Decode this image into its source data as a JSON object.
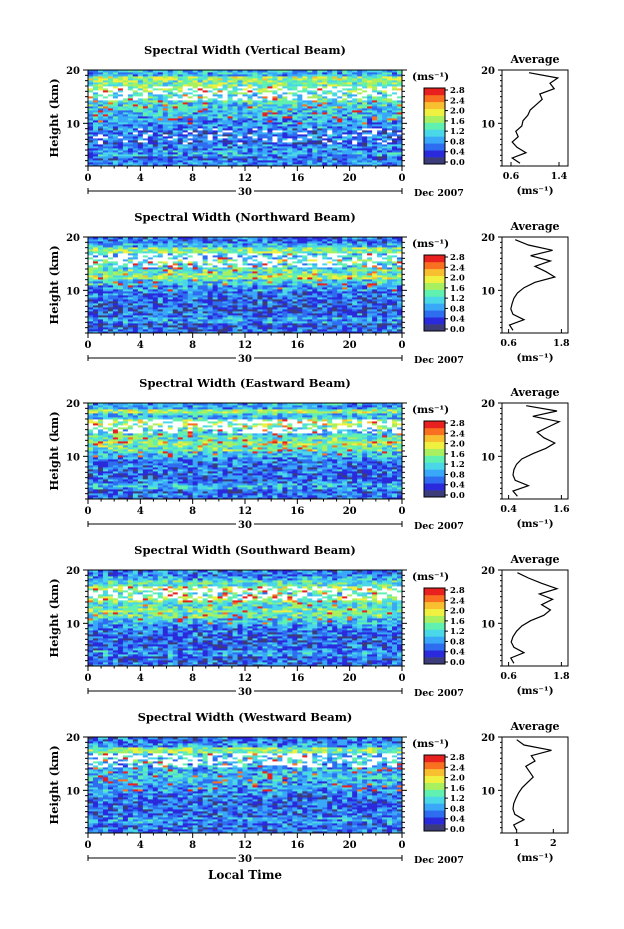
{
  "x_axis_title": "Local Time",
  "date_label": "Dec 2007",
  "day_label": "30",
  "colorbar_unit": "(ms⁻¹)",
  "y_axis_label": "Height (km)",
  "avg_title": "Average",
  "avg_unit": "(ms⁻¹)",
  "colorbar_ticks": [
    "0.0",
    "0.4",
    "0.8",
    "1.2",
    "1.6",
    "2.0",
    "2.4",
    "2.8"
  ],
  "colorbar_colors": [
    "#3c3c7a",
    "#2a2adc",
    "#2e6cf0",
    "#3aa8f8",
    "#4ad8e8",
    "#60f0b0",
    "#a8f060",
    "#f0f040",
    "#f8c030",
    "#f87020",
    "#e82020"
  ],
  "chart_data": [
    {
      "type": "heatmap",
      "title": "Spectral Width (Vertical Beam)",
      "xlabel": "Local Time",
      "ylabel": "Height (km)",
      "x_ticks": [
        "0",
        "4",
        "8",
        "12",
        "16",
        "20",
        "0"
      ],
      "y_ticks": [
        "10",
        "20"
      ],
      "xlim": [
        0,
        24
      ],
      "ylim": [
        2,
        20
      ],
      "profile": {
        "title": "Average",
        "xlabel": "(ms⁻¹)",
        "x_ticks": [
          "0.6",
          "1.4"
        ],
        "xlim": [
          0.45,
          1.55
        ],
        "heights": [
          2.5,
          3.5,
          4.5,
          5.5,
          6.5,
          7.5,
          8.5,
          9.5,
          10.5,
          11.5,
          12.5,
          13.5,
          14.5,
          15.5,
          16.5,
          17.5,
          18.5,
          19.5
        ],
        "values": [
          0.75,
          0.62,
          0.85,
          0.7,
          0.62,
          0.72,
          0.68,
          0.78,
          0.8,
          0.88,
          0.92,
          1.02,
          1.12,
          1.08,
          1.32,
          1.25,
          1.38,
          0.9
        ]
      }
    },
    {
      "type": "heatmap",
      "title": "Spectral Width (Northward Beam)",
      "xlabel": "Local Time",
      "ylabel": "Height (km)",
      "x_ticks": [
        "0",
        "4",
        "8",
        "12",
        "16",
        "20",
        "0"
      ],
      "y_ticks": [
        "10",
        "20"
      ],
      "xlim": [
        0,
        24
      ],
      "ylim": [
        2,
        20
      ],
      "profile": {
        "title": "Average",
        "xlabel": "(ms⁻¹)",
        "x_ticks": [
          "0.6",
          "1.8"
        ],
        "xlim": [
          0.45,
          1.95
        ],
        "heights": [
          2.5,
          3.5,
          4.5,
          5.5,
          6.5,
          7.5,
          8.5,
          9.5,
          10.5,
          11.5,
          12.5,
          13.5,
          14.5,
          15.5,
          16.5,
          17.5,
          18.5,
          19.5
        ],
        "values": [
          0.7,
          0.62,
          0.95,
          0.7,
          0.65,
          0.68,
          0.72,
          0.8,
          0.95,
          1.2,
          1.65,
          1.45,
          1.2,
          1.55,
          1.1,
          1.6,
          1.05,
          0.75
        ]
      }
    },
    {
      "type": "heatmap",
      "title": "Spectral Width (Eastward Beam)",
      "xlabel": "Local Time",
      "ylabel": "Height (km)",
      "x_ticks": [
        "0",
        "4",
        "8",
        "12",
        "16",
        "20",
        "0"
      ],
      "y_ticks": [
        "10",
        "20"
      ],
      "xlim": [
        0,
        24
      ],
      "ylim": [
        2,
        20
      ],
      "profile": {
        "title": "Average",
        "xlabel": "(ms⁻¹)",
        "x_ticks": [
          "0.4",
          "1.6"
        ],
        "xlim": [
          0.25,
          1.75
        ],
        "heights": [
          2.5,
          3.5,
          4.5,
          5.5,
          6.5,
          7.5,
          8.5,
          9.5,
          10.5,
          11.5,
          12.5,
          13.5,
          14.5,
          15.5,
          16.5,
          17.5,
          18.5,
          19.5
        ],
        "values": [
          0.6,
          0.5,
          0.85,
          0.55,
          0.5,
          0.52,
          0.58,
          0.7,
          0.95,
          1.25,
          1.45,
          1.2,
          1.05,
          1.3,
          1.55,
          0.95,
          1.5,
          0.8
        ]
      }
    },
    {
      "type": "heatmap",
      "title": "Spectral Width (Southward Beam)",
      "xlabel": "Local Time",
      "ylabel": "Height (km)",
      "x_ticks": [
        "0",
        "4",
        "8",
        "12",
        "16",
        "20",
        "0"
      ],
      "y_ticks": [
        "10",
        "20"
      ],
      "xlim": [
        0,
        24
      ],
      "ylim": [
        2,
        20
      ],
      "profile": {
        "title": "Average",
        "xlabel": "(ms⁻¹)",
        "x_ticks": [
          "0.6",
          "1.8"
        ],
        "xlim": [
          0.45,
          1.95
        ],
        "heights": [
          2.5,
          3.5,
          4.5,
          5.5,
          6.5,
          7.5,
          8.5,
          9.5,
          10.5,
          11.5,
          12.5,
          13.5,
          14.5,
          15.5,
          16.5,
          17.5,
          18.5,
          19.5
        ],
        "values": [
          0.72,
          0.65,
          0.95,
          0.72,
          0.66,
          0.7,
          0.78,
          0.9,
          1.1,
          1.4,
          1.55,
          1.35,
          1.6,
          1.3,
          1.7,
          1.35,
          1.05,
          0.8
        ]
      }
    },
    {
      "type": "heatmap",
      "title": "Spectral Width (Westward Beam)",
      "xlabel": "Local Time",
      "ylabel": "Height (km)",
      "x_ticks": [
        "0",
        "4",
        "8",
        "12",
        "16",
        "20",
        "0"
      ],
      "y_ticks": [
        "10",
        "20"
      ],
      "xlim": [
        0,
        24
      ],
      "ylim": [
        2,
        20
      ],
      "profile": {
        "title": "Average",
        "xlabel": "(ms⁻¹)",
        "x_ticks": [
          "1",
          "2"
        ],
        "xlim": [
          0.6,
          2.4
        ],
        "heights": [
          2.5,
          3.5,
          4.5,
          5.5,
          6.5,
          7.5,
          8.5,
          9.5,
          10.5,
          11.5,
          12.5,
          13.5,
          14.5,
          15.5,
          16.5,
          17.5,
          18.5,
          19.5
        ],
        "values": [
          1.0,
          0.92,
          1.2,
          0.95,
          0.9,
          0.92,
          0.98,
          1.05,
          1.15,
          1.3,
          1.45,
          1.35,
          1.25,
          1.5,
          1.4,
          1.95,
          1.2,
          1.0
        ]
      }
    }
  ]
}
